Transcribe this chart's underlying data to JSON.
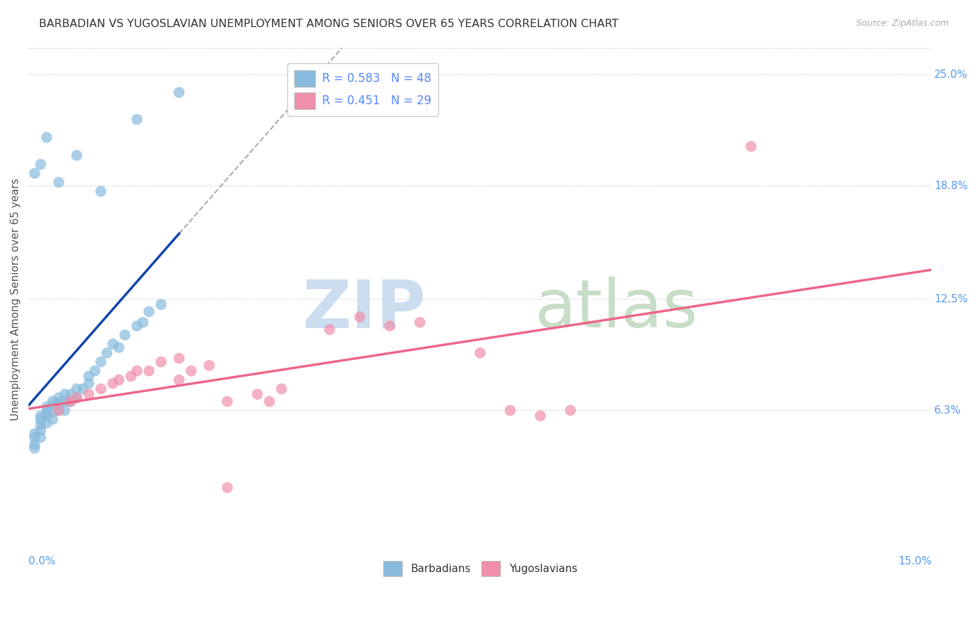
{
  "title": "BARBADIAN VS YUGOSLAVIAN UNEMPLOYMENT AMONG SENIORS OVER 65 YEARS CORRELATION CHART",
  "source": "Source: ZipAtlas.com",
  "ylabel": "Unemployment Among Seniors over 65 years",
  "ytick_labels": [
    "6.3%",
    "12.5%",
    "18.8%",
    "25.0%"
  ],
  "ytick_values": [
    0.063,
    0.125,
    0.188,
    0.25
  ],
  "xlim": [
    0.0,
    0.15
  ],
  "ylim": [
    -0.015,
    0.265
  ],
  "legend_r1": "R = 0.583",
  "legend_n1": "N = 48",
  "legend_r2": "R = 0.451",
  "legend_n2": "N = 29",
  "barbadian_color": "#88bbdd",
  "yugoslavian_color": "#f090aa",
  "trendline_barbadian_color": "#1144aa",
  "trendline_yugoslavian_color": "#ee6688",
  "background_color": "#ffffff",
  "grid_color": "#dddddd",
  "barbadian_points": [
    [
      0.001,
      0.042
    ],
    [
      0.001,
      0.044
    ],
    [
      0.001,
      0.048
    ],
    [
      0.001,
      0.05
    ],
    [
      0.002,
      0.048
    ],
    [
      0.002,
      0.052
    ],
    [
      0.002,
      0.055
    ],
    [
      0.002,
      0.058
    ],
    [
      0.002,
      0.06
    ],
    [
      0.003,
      0.056
    ],
    [
      0.003,
      0.06
    ],
    [
      0.003,
      0.062
    ],
    [
      0.003,
      0.065
    ],
    [
      0.004,
      0.058
    ],
    [
      0.004,
      0.062
    ],
    [
      0.004,
      0.066
    ],
    [
      0.004,
      0.068
    ],
    [
      0.005,
      0.063
    ],
    [
      0.005,
      0.067
    ],
    [
      0.005,
      0.07
    ],
    [
      0.006,
      0.063
    ],
    [
      0.006,
      0.068
    ],
    [
      0.006,
      0.072
    ],
    [
      0.007,
      0.068
    ],
    [
      0.007,
      0.072
    ],
    [
      0.008,
      0.07
    ],
    [
      0.008,
      0.075
    ],
    [
      0.009,
      0.075
    ],
    [
      0.01,
      0.078
    ],
    [
      0.01,
      0.082
    ],
    [
      0.011,
      0.085
    ],
    [
      0.012,
      0.09
    ],
    [
      0.013,
      0.095
    ],
    [
      0.014,
      0.1
    ],
    [
      0.015,
      0.098
    ],
    [
      0.016,
      0.105
    ],
    [
      0.018,
      0.11
    ],
    [
      0.019,
      0.112
    ],
    [
      0.02,
      0.118
    ],
    [
      0.022,
      0.122
    ],
    [
      0.001,
      0.195
    ],
    [
      0.002,
      0.2
    ],
    [
      0.003,
      0.215
    ],
    [
      0.005,
      0.19
    ],
    [
      0.008,
      0.205
    ],
    [
      0.012,
      0.185
    ],
    [
      0.018,
      0.225
    ],
    [
      0.025,
      0.24
    ]
  ],
  "yugoslavian_points": [
    [
      0.005,
      0.063
    ],
    [
      0.007,
      0.068
    ],
    [
      0.008,
      0.07
    ],
    [
      0.01,
      0.072
    ],
    [
      0.012,
      0.075
    ],
    [
      0.014,
      0.078
    ],
    [
      0.015,
      0.08
    ],
    [
      0.017,
      0.082
    ],
    [
      0.018,
      0.085
    ],
    [
      0.02,
      0.085
    ],
    [
      0.022,
      0.09
    ],
    [
      0.025,
      0.092
    ],
    [
      0.025,
      0.08
    ],
    [
      0.027,
      0.085
    ],
    [
      0.03,
      0.088
    ],
    [
      0.033,
      0.068
    ],
    [
      0.038,
      0.072
    ],
    [
      0.04,
      0.068
    ],
    [
      0.042,
      0.075
    ],
    [
      0.05,
      0.108
    ],
    [
      0.055,
      0.115
    ],
    [
      0.06,
      0.11
    ],
    [
      0.065,
      0.112
    ],
    [
      0.075,
      0.095
    ],
    [
      0.08,
      0.063
    ],
    [
      0.085,
      0.06
    ],
    [
      0.09,
      0.063
    ],
    [
      0.12,
      0.21
    ],
    [
      0.033,
      0.02
    ]
  ]
}
